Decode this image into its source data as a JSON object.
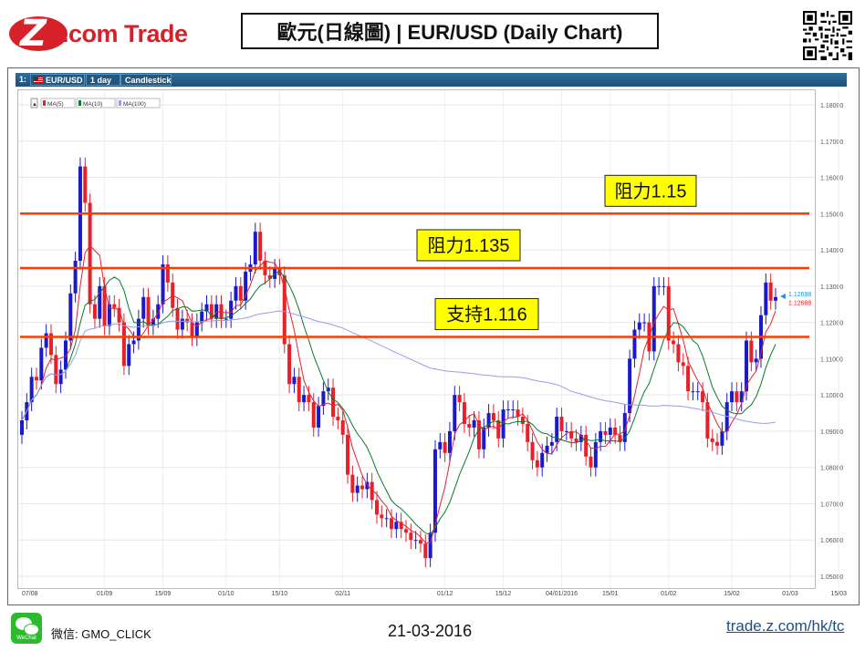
{
  "brand": {
    "logo_mark": "Z",
    "logo_text": ".com Trade"
  },
  "header": {
    "title": "歐元(日線圖) | EUR/USD  (Daily Chart)"
  },
  "toolbar": {
    "index": "1:",
    "symbol": "EUR/USD",
    "interval": "1 day",
    "style": "Candlestick"
  },
  "legend": {
    "items": [
      "MA(5)",
      "MA(10)",
      "MA(100)"
    ],
    "colors": [
      "#e8202a",
      "#0a7a2a",
      "#9a9aee"
    ]
  },
  "footer": {
    "wechat_badge": "WeChat",
    "wechat": "微信: GMO_CLICK",
    "date": "21-03-2016",
    "url": "trade.z.com/hk/tc"
  },
  "chart_data": {
    "type": "candlestick",
    "title": "EUR/USD Daily Chart",
    "ylim": [
      1.045,
      1.185
    ],
    "y_ticks": [
      "1.18000",
      "1.17000",
      "1.16000",
      "1.15000",
      "1.14000",
      "1.13000",
      "1.12000",
      "1.11000",
      "1.10000",
      "1.09000",
      "1.08000",
      "1.07000",
      "1.06000",
      "1.05000"
    ],
    "x_ticks": [
      "07/08",
      "01/09",
      "15/09",
      "01/10",
      "15/10",
      "02/11",
      "01/12",
      "15/12",
      "04/01/2016",
      "15/01",
      "01/02",
      "15/02",
      "01/03",
      "15/03"
    ],
    "x_tick_index": [
      0,
      17,
      29,
      42,
      53,
      66,
      87,
      99,
      111,
      121,
      133,
      146,
      158,
      168
    ],
    "levels": [
      {
        "label": "阻力1.15",
        "value": 1.15
      },
      {
        "label": "阻力1.135",
        "value": 1.135
      },
      {
        "label": "支持1.116",
        "value": 1.116
      }
    ],
    "price_tags": [
      {
        "label": "1.12698",
        "value": 1.12698,
        "color": "#2a8fd8"
      },
      {
        "label": "1.12688",
        "value": 1.12688,
        "color": "#e8202a"
      }
    ],
    "colors": {
      "up": "#1a1acc",
      "down": "#e8202a",
      "level": "#ff3b00",
      "level_box": "#ffff00"
    },
    "close": [
      1.093,
      1.098,
      1.105,
      1.104,
      1.113,
      1.117,
      1.111,
      1.103,
      1.107,
      1.115,
      1.128,
      1.137,
      1.163,
      1.153,
      1.125,
      1.121,
      1.13,
      1.119,
      1.125,
      1.124,
      1.12,
      1.108,
      1.114,
      1.115,
      1.121,
      1.127,
      1.119,
      1.121,
      1.125,
      1.136,
      1.131,
      1.124,
      1.118,
      1.121,
      1.12,
      1.116,
      1.12,
      1.123,
      1.125,
      1.121,
      1.125,
      1.121,
      1.121,
      1.126,
      1.13,
      1.126,
      1.134,
      1.136,
      1.145,
      1.137,
      1.133,
      1.132,
      1.135,
      1.133,
      1.114,
      1.103,
      1.105,
      1.098,
      1.1,
      1.098,
      1.091,
      1.097,
      1.101,
      1.102,
      1.094,
      1.093,
      1.089,
      1.078,
      1.073,
      1.075,
      1.074,
      1.076,
      1.071,
      1.067,
      1.066,
      1.066,
      1.063,
      1.065,
      1.063,
      1.062,
      1.06,
      1.06,
      1.059,
      1.055,
      1.062,
      1.085,
      1.087,
      1.084,
      1.09,
      1.1,
      1.098,
      1.092,
      1.091,
      1.093,
      1.085,
      1.091,
      1.095,
      1.093,
      1.088,
      1.096,
      1.096,
      1.096,
      1.094,
      1.092,
      1.087,
      1.082,
      1.08,
      1.084,
      1.086,
      1.087,
      1.094,
      1.09,
      1.09,
      1.088,
      1.087,
      1.089,
      1.083,
      1.08,
      1.087,
      1.09,
      1.089,
      1.091,
      1.089,
      1.087,
      1.095,
      1.11,
      1.118,
      1.12,
      1.12,
      1.112,
      1.13,
      1.13,
      1.13,
      1.115,
      1.114,
      1.109,
      1.108,
      1.101,
      1.101,
      1.101,
      1.098,
      1.088,
      1.087,
      1.086,
      1.09,
      1.098,
      1.101,
      1.098,
      1.101,
      1.115,
      1.109,
      1.11,
      1.122,
      1.131,
      1.126,
      1.127
    ]
  }
}
